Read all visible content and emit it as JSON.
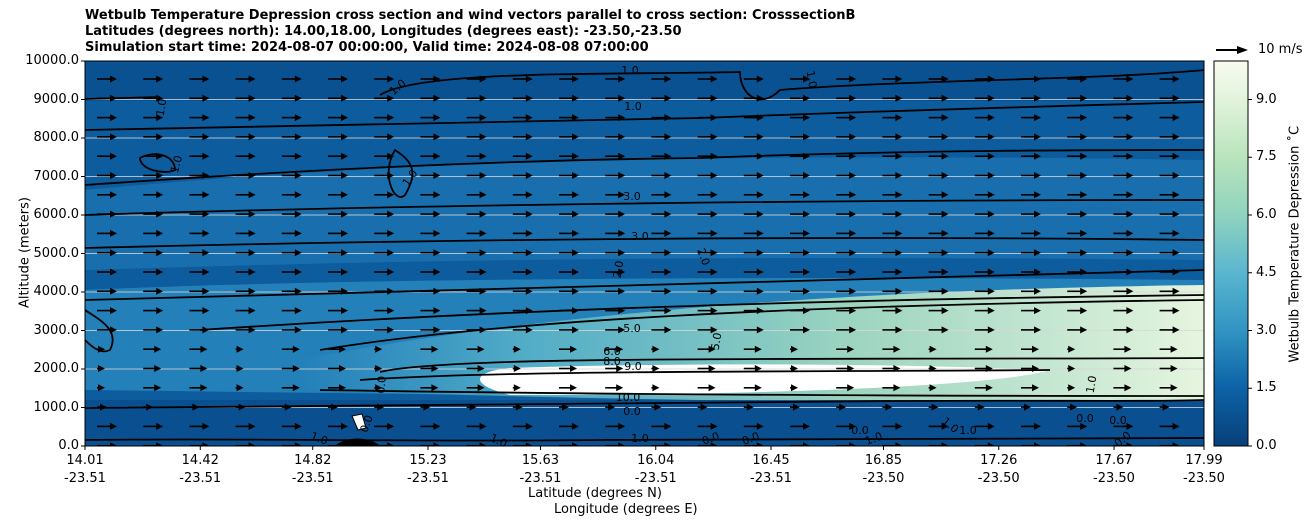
{
  "chart_data": {
    "type": "contour",
    "title_lines": [
      "Wetbulb Temperature Depression cross section and wind vectors parallel to cross section: CrosssectionB",
      "Latitudes (degrees north): 14.00,18.00, Longitudes (degrees east): -23.50,-23.50",
      "Simulation start time: 2024-08-07 00:00:00, Valid time: 2024-08-08 07:00:00"
    ],
    "ylabel": "Altitude (meters)",
    "xlabel_line1": "Latitude (degrees N)",
    "xlabel_line2": "Longitude (degrees E)",
    "ylim": [
      0,
      10000
    ],
    "y_ticks": [
      "0.0",
      "1000.0",
      "2000.0",
      "3000.0",
      "4000.0",
      "5000.0",
      "6000.0",
      "7000.0",
      "8000.0",
      "9000.0",
      "10000.0"
    ],
    "x_ticks": [
      {
        "lat": "14.01",
        "lon": "-23.51"
      },
      {
        "lat": "14.42",
        "lon": "-23.51"
      },
      {
        "lat": "14.82",
        "lon": "-23.51"
      },
      {
        "lat": "15.23",
        "lon": "-23.51"
      },
      {
        "lat": "15.63",
        "lon": "-23.51"
      },
      {
        "lat": "16.04",
        "lon": "-23.51"
      },
      {
        "lat": "16.45",
        "lon": "-23.51"
      },
      {
        "lat": "16.85",
        "lon": "-23.50"
      },
      {
        "lat": "17.26",
        "lon": "-23.50"
      },
      {
        "lat": "17.67",
        "lon": "-23.50"
      },
      {
        "lat": "17.99",
        "lon": "-23.50"
      }
    ],
    "colorbar": {
      "label": "Wetbulb Temperature Depression ˚C",
      "range": [
        0,
        10
      ],
      "ticks": [
        "0.0",
        "1.5",
        "3.0",
        "4.5",
        "6.0",
        "7.5",
        "9.0"
      ],
      "tick_values": [
        0,
        1.5,
        3,
        4.5,
        6,
        7.5,
        9
      ]
    },
    "quiver_key": "10 m/s",
    "contour_labels": [
      "1.0",
      "3.0",
      "5.0",
      "2.0",
      "0.0",
      "10.0",
      "6.0",
      "8.0",
      "9.0"
    ]
  }
}
